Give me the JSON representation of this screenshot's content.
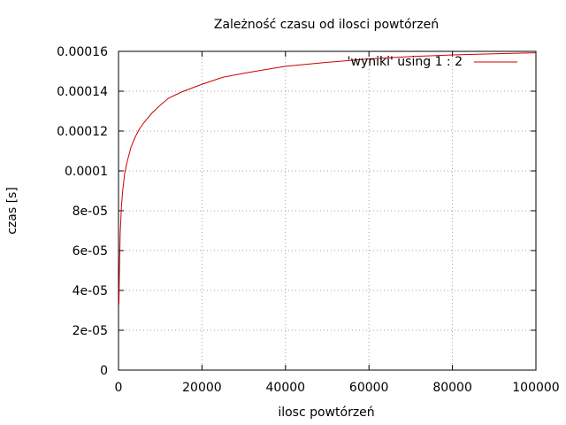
{
  "chart_data": {
    "type": "line",
    "title": "Zależność czasu od ilosci powtórzeń",
    "xlabel": "ilosc powtórzeń",
    "ylabel": "czas [s]",
    "xlim": [
      0,
      100000
    ],
    "ylim": [
      0,
      0.00016
    ],
    "x_ticks": [
      "0",
      "20000",
      "40000",
      "60000",
      "80000",
      "100000"
    ],
    "y_ticks": [
      "0",
      "2e-05",
      "4e-05",
      "6e-05",
      "8e-05",
      "0.0001",
      "0.00012",
      "0.00014",
      "0.00016"
    ],
    "grid": true,
    "legend_position": "top-right",
    "series": [
      {
        "name": "'wyniki' using 1 : 2",
        "color": "#cc0000",
        "x": [
          100,
          200,
          400,
          700,
          1000,
          1500,
          2000,
          3000,
          4000,
          5000,
          6000,
          8000,
          10000,
          12000,
          15000,
          20000,
          25000,
          30000,
          35000,
          40000,
          50000,
          60000,
          70000,
          80000,
          90000,
          100000
        ],
        "y": [
          3.3e-05,
          4.8e-05,
          6.8e-05,
          8.2e-05,
          9e-05,
          9.9e-05,
          0.000104,
          0.000112,
          0.000117,
          0.000121,
          0.000124,
          0.000129,
          0.000133,
          0.0001365,
          0.0001395,
          0.0001435,
          0.000147,
          0.000149,
          0.0001508,
          0.0001525,
          0.0001545,
          0.0001562,
          0.0001574,
          0.0001582,
          0.0001588,
          0.0001593
        ]
      }
    ]
  }
}
